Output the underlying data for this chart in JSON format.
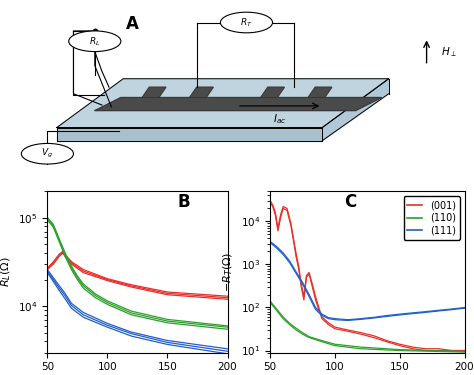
{
  "panel_B": {
    "red": {
      "sweeps_x": [
        [
          50,
          55,
          60,
          63,
          65,
          70,
          80,
          100,
          120,
          150,
          200
        ],
        [
          50,
          55,
          60,
          63,
          65,
          70,
          80,
          100,
          120,
          150,
          200
        ],
        [
          50,
          55,
          60,
          63,
          65,
          70,
          80,
          100,
          120,
          150,
          200
        ]
      ],
      "sweeps_y": [
        [
          26000,
          30000,
          37000,
          40000,
          36000,
          30000,
          24000,
          19500,
          16500,
          13500,
          12000
        ],
        [
          26500,
          31000,
          38000,
          41000,
          37000,
          31000,
          25000,
          20000,
          17000,
          14000,
          12500
        ],
        [
          27000,
          32000,
          39000,
          42000,
          38000,
          32000,
          26000,
          20500,
          17500,
          14500,
          13000
        ]
      ]
    },
    "green": {
      "sweeps_x": [
        [
          50,
          55,
          60,
          65,
          70,
          75,
          80,
          90,
          100,
          120,
          150,
          200
        ],
        [
          50,
          55,
          60,
          65,
          70,
          75,
          80,
          90,
          100,
          120,
          150,
          200
        ],
        [
          50,
          55,
          60,
          65,
          70,
          75,
          80,
          90,
          100,
          120,
          150,
          200
        ]
      ],
      "sweeps_y": [
        [
          95000,
          78000,
          53000,
          36000,
          26000,
          20000,
          16000,
          12500,
          10500,
          8000,
          6500,
          5500
        ],
        [
          98000,
          81000,
          55000,
          38000,
          27500,
          21000,
          17000,
          13200,
          11000,
          8400,
          6800,
          5800
        ],
        [
          101000,
          84000,
          57000,
          39500,
          28500,
          22000,
          17800,
          13800,
          11500,
          8800,
          7100,
          6000
        ]
      ]
    },
    "blue": {
      "sweeps_x": [
        [
          50,
          55,
          60,
          65,
          70,
          80,
          100,
          120,
          150,
          200
        ],
        [
          50,
          55,
          60,
          65,
          70,
          80,
          100,
          120,
          150,
          200
        ],
        [
          50,
          55,
          60,
          65,
          70,
          80,
          100,
          120,
          150,
          200
        ]
      ],
      "sweeps_y": [
        [
          24000,
          19000,
          15000,
          12000,
          9500,
          7500,
          5800,
          4600,
          3700,
          2900
        ],
        [
          25000,
          20000,
          16000,
          13000,
          10200,
          8000,
          6100,
          4900,
          3900,
          3100
        ],
        [
          26000,
          21000,
          17000,
          13800,
          10800,
          8500,
          6400,
          5100,
          4100,
          3300
        ]
      ]
    }
  },
  "panel_C": {
    "red": {
      "sweeps_x": [
        [
          50,
          52,
          54,
          56,
          58,
          60,
          63,
          66,
          68,
          70,
          72,
          74,
          76,
          78,
          80,
          82,
          85,
          88,
          90,
          95,
          100,
          110,
          120,
          130,
          140,
          150,
          160,
          170,
          180,
          190,
          200
        ],
        [
          50,
          52,
          54,
          56,
          58,
          60,
          63,
          66,
          68,
          70,
          72,
          74,
          76,
          78,
          80,
          82,
          85,
          88,
          90,
          95,
          100,
          110,
          120,
          130,
          140,
          150,
          160,
          170,
          180,
          190,
          200
        ]
      ],
      "sweeps_y": [
        [
          28000,
          22000,
          14000,
          6000,
          12000,
          20000,
          18000,
          8000,
          3500,
          1500,
          800,
          300,
          150,
          500,
          600,
          350,
          150,
          80,
          55,
          40,
          32,
          28,
          24,
          20,
          16,
          13,
          11,
          10,
          10,
          10,
          10
        ],
        [
          30000,
          24000,
          16000,
          7000,
          14000,
          22000,
          20000,
          9000,
          4000,
          1800,
          900,
          350,
          180,
          550,
          650,
          400,
          180,
          90,
          60,
          44,
          35,
          30,
          26,
          22,
          17,
          14,
          12,
          11,
          11,
          10,
          10
        ]
      ]
    },
    "green": {
      "sweeps_x": [
        [
          50,
          55,
          60,
          65,
          70,
          75,
          80,
          90,
          100,
          120,
          150,
          200
        ],
        [
          50,
          55,
          60,
          65,
          70,
          75,
          80,
          90,
          100,
          120,
          150,
          200
        ]
      ],
      "sweeps_y": [
        [
          130,
          85,
          55,
          40,
          30,
          24,
          20,
          16,
          13,
          11,
          10,
          9.2
        ],
        [
          140,
          92,
          60,
          43,
          33,
          26,
          21,
          17,
          14,
          12,
          10.5,
          9.5
        ]
      ]
    },
    "blue": {
      "sweeps_x": [
        [
          50,
          55,
          60,
          65,
          70,
          75,
          80,
          85,
          90,
          95,
          100,
          110,
          120,
          130,
          140,
          150,
          160,
          170,
          180,
          190,
          200
        ],
        [
          50,
          55,
          60,
          65,
          70,
          75,
          80,
          85,
          90,
          95,
          100,
          110,
          120,
          130,
          140,
          150,
          160,
          170,
          180,
          190,
          200
        ]
      ],
      "sweeps_y": [
        [
          3200,
          2400,
          1700,
          1100,
          620,
          350,
          180,
          90,
          65,
          55,
          52,
          50,
          53,
          57,
          62,
          67,
          72,
          77,
          83,
          89,
          96
        ],
        [
          3400,
          2600,
          1850,
          1200,
          670,
          380,
          200,
          100,
          70,
          58,
          55,
          52,
          55,
          59,
          65,
          70,
          75,
          80,
          86,
          92,
          100
        ]
      ]
    }
  },
  "colors": {
    "red": "#e8302a",
    "green": "#2ca02c",
    "blue": "#2060c8"
  },
  "xlim": [
    50,
    200
  ],
  "ylim_B": [
    3000,
    200000
  ],
  "ylim_C": [
    9,
    50000
  ]
}
